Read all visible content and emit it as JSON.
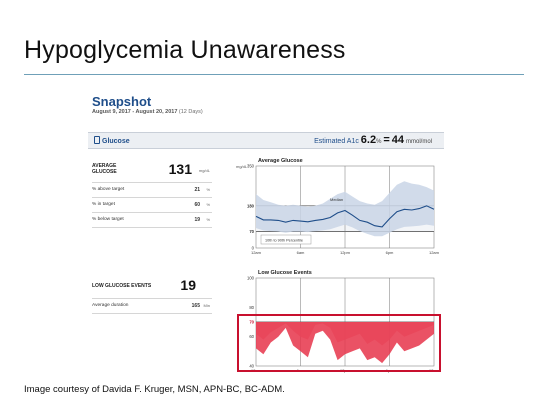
{
  "slide": {
    "title": "Hypoglycemia Unawareness",
    "caption": "Image courtesy of Davida F. Kruger, MSN, APN-BC, BC-ADM."
  },
  "report": {
    "title": "Snapshot",
    "date_range": "August 9, 2017 - August 20, 2017",
    "days": "(12 Days)",
    "section": "Glucose",
    "a1c_label": "Estimated A1c",
    "a1c_percent": "6.2",
    "a1c_percent_unit": "%",
    "a1c_eq": "=",
    "a1c_mmol": "44",
    "a1c_mmol_unit": "mmol/mol",
    "stats": {
      "avg_label": "AVERAGE GLUCOSE",
      "avg_value": "131",
      "avg_unit": "mg/dL",
      "above_label": "% above target",
      "above_value": "21",
      "in_label": "% in target",
      "in_value": "60",
      "below_label": "% below target",
      "below_value": "19",
      "pct_unit": "%"
    },
    "low_events": {
      "label": "LOW GLUCOSE EVENTS",
      "value": "19",
      "duration_label": "Average duration",
      "duration_value": "165",
      "duration_unit": "Min"
    }
  },
  "chart_data": [
    {
      "type": "area",
      "title": "Average Glucose",
      "ylabel": "mg/dL",
      "x_ticks": [
        "12am",
        "6am",
        "12pm",
        "6pm",
        "12am"
      ],
      "y_ticks": [
        0,
        70,
        180,
        350
      ],
      "ylim": [
        0,
        350
      ],
      "xlim_hours": [
        0,
        24
      ],
      "target_range": [
        70,
        180
      ],
      "median_label": "Median",
      "band_label": "10th to 90th Percentile",
      "median": {
        "x": [
          0,
          1,
          2,
          3,
          4,
          5,
          6,
          7,
          8,
          9,
          10,
          11,
          12,
          13,
          14,
          15,
          16,
          17,
          18,
          19,
          20,
          21,
          22,
          23,
          24
        ],
        "y": [
          135,
          120,
          120,
          118,
          110,
          118,
          115,
          112,
          118,
          122,
          130,
          150,
          160,
          140,
          118,
          110,
          95,
          90,
          125,
          155,
          165,
          162,
          168,
          180,
          165
        ]
      },
      "band_upper": [
        230,
        205,
        195,
        185,
        180,
        185,
        180,
        175,
        180,
        190,
        210,
        230,
        240,
        220,
        200,
        190,
        185,
        200,
        235,
        270,
        285,
        275,
        270,
        260,
        245
      ],
      "band_lower": [
        85,
        75,
        72,
        70,
        65,
        70,
        70,
        68,
        72,
        75,
        80,
        90,
        100,
        88,
        72,
        60,
        50,
        50,
        65,
        80,
        90,
        92,
        95,
        100,
        95
      ]
    },
    {
      "type": "area",
      "title": "Low Glucose Events",
      "x_ticks": [
        "12am",
        "6am",
        "12pm",
        "6pm",
        "12am"
      ],
      "y_ticks": [
        40,
        60,
        70,
        80,
        100
      ],
      "ylim": [
        40,
        100
      ],
      "xlim_hours": [
        0,
        24
      ],
      "threshold": 70,
      "series": [
        {
          "x": [
            0,
            1,
            2,
            3,
            4,
            5,
            6,
            7,
            8,
            9,
            10,
            11,
            12,
            13,
            14,
            15,
            16,
            17,
            18,
            19,
            20,
            21,
            22,
            23,
            24
          ],
          "y": [
            52,
            48,
            56,
            60,
            66,
            54,
            50,
            46,
            62,
            64,
            58,
            44,
            48,
            50,
            52,
            44,
            46,
            42,
            48,
            56,
            50,
            52,
            54,
            58,
            62
          ]
        },
        {
          "x": [
            0,
            1,
            2,
            3,
            4,
            5,
            6,
            7,
            8,
            9,
            10,
            11,
            12,
            13,
            14,
            15,
            16,
            17,
            18,
            19,
            20,
            21,
            22,
            23,
            24
          ],
          "y": [
            62,
            58,
            63,
            66,
            69,
            64,
            60,
            58,
            68,
            69,
            66,
            56,
            58,
            60,
            62,
            55,
            58,
            54,
            58,
            64,
            60,
            62,
            64,
            66,
            68
          ]
        }
      ]
    }
  ],
  "colors": {
    "title_rule": "#6fa0b8",
    "report_blue": "#1f4e8a",
    "band": "#c9d5e6",
    "median": "#1f4e8a",
    "low_fill_dark": "#e6344a",
    "low_fill_light": "#f4a7b0",
    "highlight": "#c8102e"
  },
  "icons": {
    "glucose": "glucose-drop-icon"
  }
}
